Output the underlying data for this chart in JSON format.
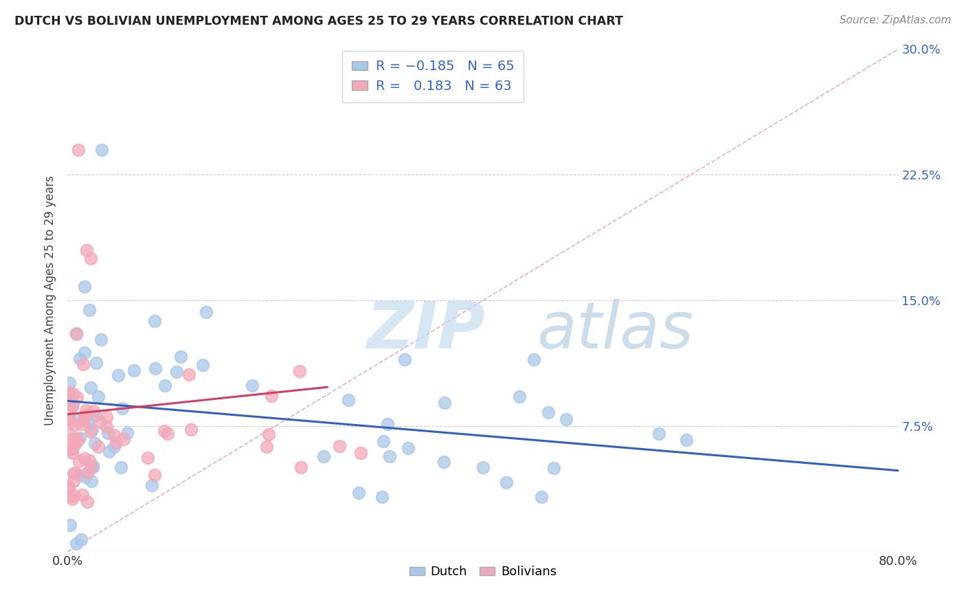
{
  "title": "DUTCH VS BOLIVIAN UNEMPLOYMENT AMONG AGES 25 TO 29 YEARS CORRELATION CHART",
  "source": "Source: ZipAtlas.com",
  "ylabel": "Unemployment Among Ages 25 to 29 years",
  "xlim": [
    0.0,
    0.8
  ],
  "ylim": [
    0.0,
    0.3
  ],
  "dutch_R": -0.185,
  "dutch_N": 65,
  "bolivian_R": 0.183,
  "bolivian_N": 63,
  "dutch_color": "#a8c8e8",
  "bolivian_color": "#f2a8b8",
  "dutch_line_color": "#3060c0",
  "bolivian_line_color": "#d04060",
  "diag_line_color": "#e0a0b0",
  "background_color": "#ffffff",
  "grid_color": "#c8c8c8",
  "watermark_zip_color": "#c8dff0",
  "watermark_atlas_color": "#b8d0e8",
  "title_color": "#222222",
  "source_color": "#888888",
  "tick_color": "#3366cc",
  "legend_text_color": "#3366cc"
}
